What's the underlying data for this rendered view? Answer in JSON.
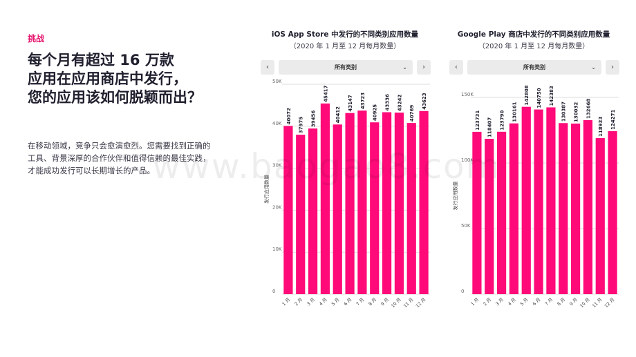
{
  "left": {
    "eyebrow": "挑战",
    "headline": [
      "每个月有超过 16 万款",
      "应用在应用商店中发行，",
      "您的应用该如何脱颖而出？"
    ],
    "body": "在移动领域，竞争只会愈演愈烈。您需要找到正确的工具、背景深厚的合作伙伴和值得信赖的最佳实践，才能成功发行可以长期增长的产品。"
  },
  "watermark": "www.baogao8.com",
  "icons": {
    "prev": "chevron-left-icon",
    "next": "chevron-right-icon",
    "dropdown": "chevron-down-icon"
  },
  "controls": {
    "prev_glyph": "‹",
    "next_glyph": "›",
    "dropdown_glyph": "⌄"
  },
  "colors": {
    "bar": "#ff0a78",
    "accent": "#e6156e",
    "grid": "#dedede"
  },
  "chart_data": [
    {
      "type": "bar",
      "title": "iOS App Store 中发行的不同类别应用数量",
      "subtitle": "（2020 年 1 月至 12 月每月数量）",
      "filter_label": "所有类别",
      "ylabel": "发行应用数量",
      "xlabel": "",
      "categories": [
        "1 月",
        "2 月",
        "3 月",
        "4 月",
        "5 月",
        "6 月",
        "7 月",
        "8 月",
        "9 月",
        "10 月",
        "11 月",
        "12 月"
      ],
      "values": [
        40072,
        37975,
        39456,
        45417,
        40412,
        43147,
        43723,
        40925,
        43336,
        43242,
        40769,
        43623
      ],
      "value_labels": [
        "40072",
        "37975",
        "39456",
        "45417",
        "40412",
        "43147",
        "43723",
        "40925",
        "43336",
        "43242",
        "40769",
        "43623"
      ],
      "ylim": [
        0,
        50000
      ],
      "yticks": [
        0,
        10000,
        20000,
        30000,
        40000,
        50000
      ],
      "ytick_labels": [
        "0",
        "10K",
        "20K",
        "30K",
        "40K",
        "50K"
      ],
      "grid": true
    },
    {
      "type": "bar",
      "title": "Google Play 商店中发行的不同类别应用数量",
      "subtitle": "（2020 年 1 月至 12 月每月数量）",
      "filter_label": "所有类别",
      "ylabel": "发行应用数量",
      "xlabel": "",
      "categories": [
        "1 月",
        "2 月",
        "3 月",
        "4 月",
        "5 月",
        "6 月",
        "7 月",
        "8 月",
        "9 月",
        "10 月",
        "11 月",
        "12 月"
      ],
      "values": [
        123731,
        118407,
        123790,
        130161,
        142808,
        140750,
        142383,
        130387,
        130032,
        132668,
        118933,
        124271
      ],
      "value_labels": [
        "123731",
        "118407",
        "123790",
        "130161",
        "142808",
        "140750",
        "142383",
        "130387",
        "130032",
        "132668",
        "118933",
        "124271"
      ],
      "ylim": [
        0,
        150000
      ],
      "yticks": [
        0,
        50000,
        100000,
        150000
      ],
      "ytick_labels": [
        "0",
        "50K",
        "100K",
        "150K"
      ],
      "grid": true
    }
  ]
}
